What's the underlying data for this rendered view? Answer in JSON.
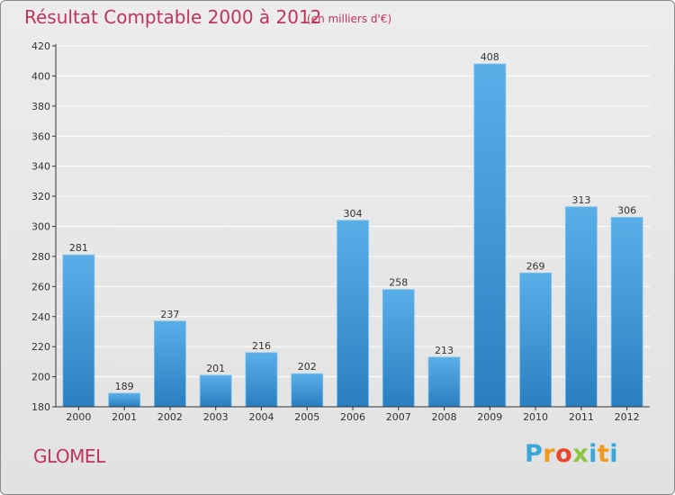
{
  "title": "Résultat Comptable 2000 à 2012",
  "subtitle": "(en milliers d'€)",
  "commune": "GLOMEL",
  "logo": {
    "letters": [
      "P",
      "r",
      "o",
      "x",
      "i",
      "t",
      "i"
    ],
    "colors": [
      "#3aa7d8",
      "#f29a1d",
      "#e8452c",
      "#8cc63f",
      "#3aa7d8",
      "#f29a1d",
      "#3aa7d8"
    ]
  },
  "colors": {
    "title": "#c0335a",
    "bar_top": "#5aaee8",
    "bar_bottom": "#2a7fc0",
    "grid": "#ffffff",
    "axis": "#333333"
  },
  "chart_data": {
    "type": "bar",
    "title": "Résultat Comptable 2000 à 2012",
    "subtitle": "(en milliers d'€)",
    "xlabel": "",
    "ylabel": "",
    "categories": [
      "2000",
      "2001",
      "2002",
      "2003",
      "2004",
      "2005",
      "2006",
      "2007",
      "2008",
      "2009",
      "2010",
      "2011",
      "2012"
    ],
    "values": [
      281,
      189,
      237,
      201,
      216,
      202,
      304,
      258,
      213,
      408,
      269,
      313,
      306
    ],
    "ylim": [
      180,
      420
    ],
    "yticks": [
      180,
      200,
      220,
      240,
      260,
      280,
      300,
      320,
      340,
      360,
      380,
      400,
      420
    ],
    "grid": true,
    "data_labels": true,
    "legend": "none"
  }
}
